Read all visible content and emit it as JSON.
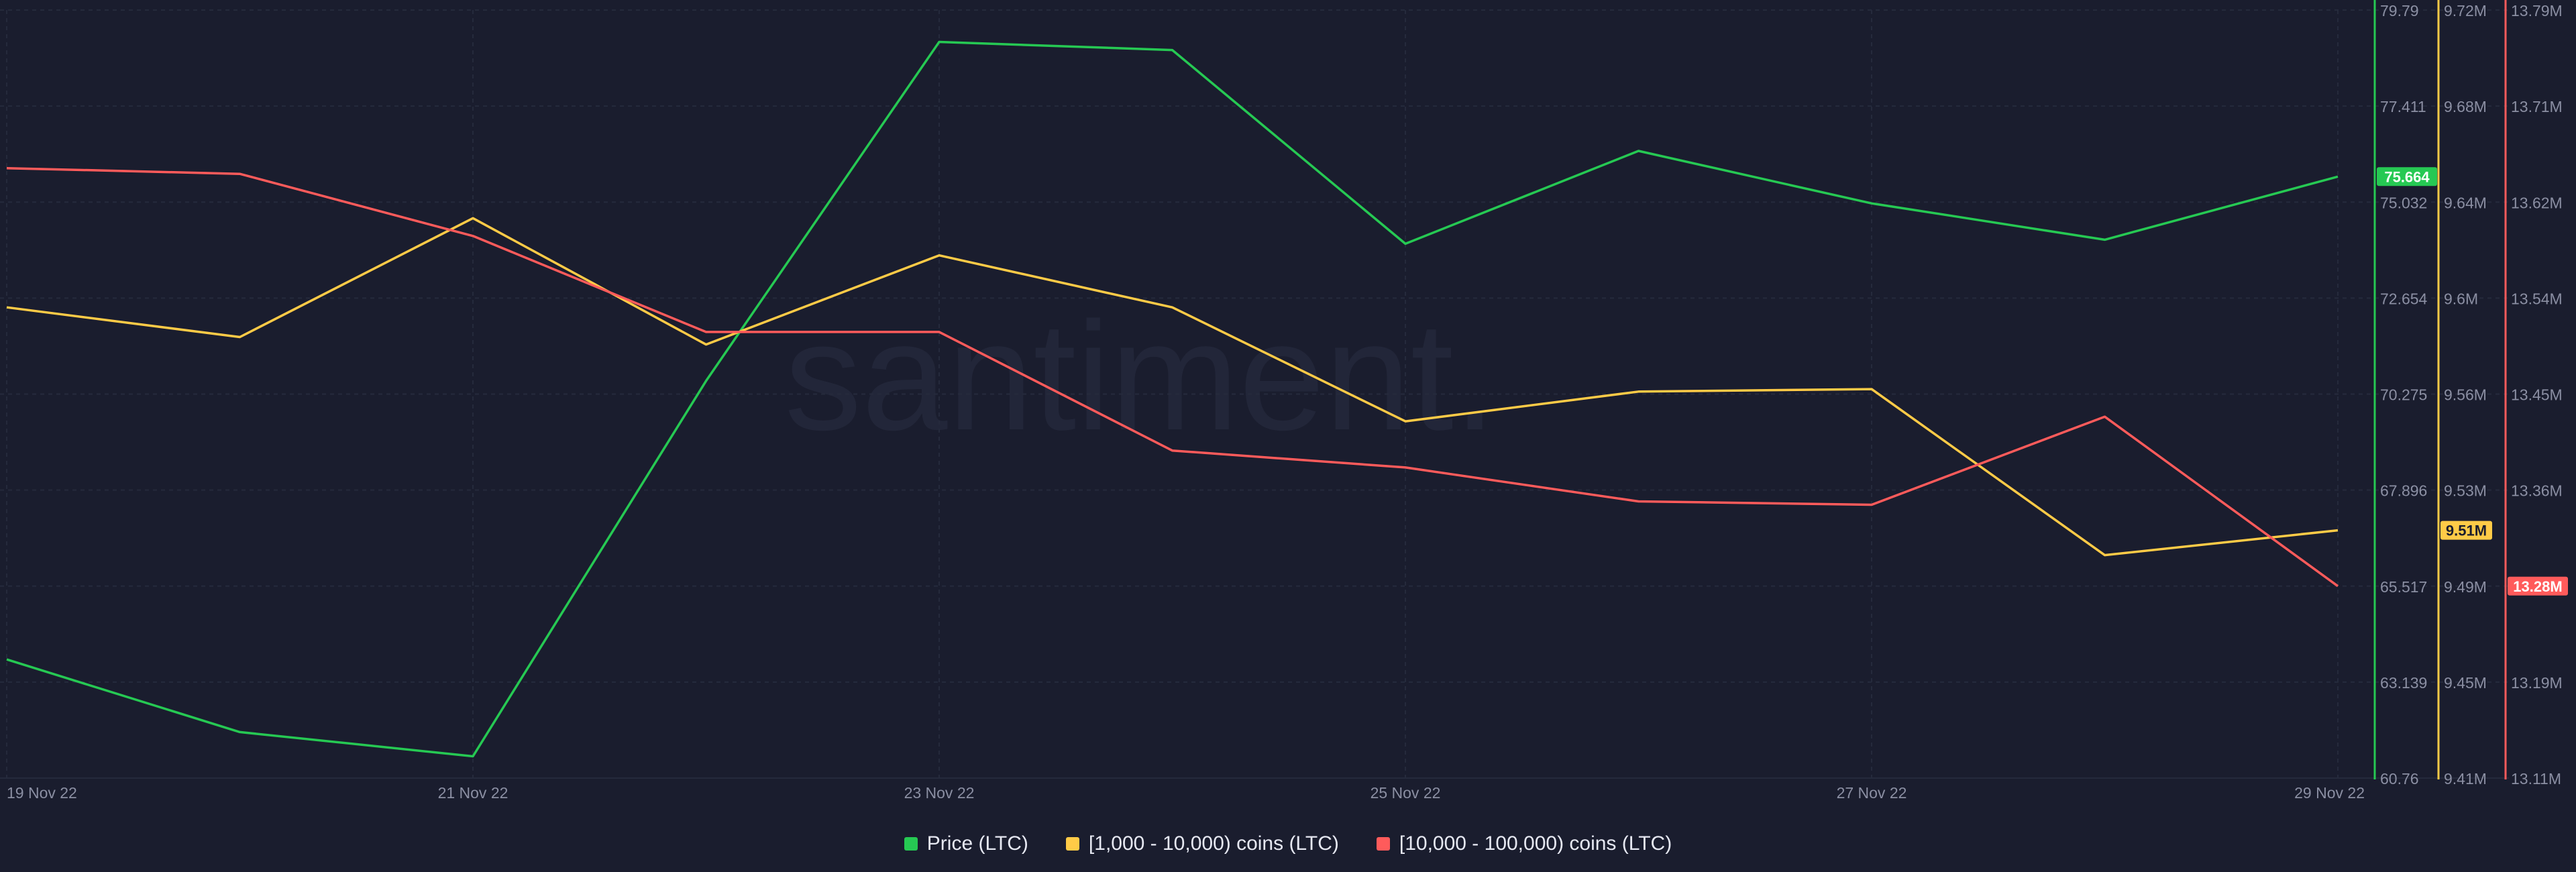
{
  "watermark": "santiment.",
  "chart_data": {
    "type": "line",
    "x": [
      "19 Nov 22",
      "20 Nov 22",
      "21 Nov 22",
      "22 Nov 22",
      "23 Nov 22",
      "24 Nov 22",
      "25 Nov 22",
      "26 Nov 22",
      "27 Nov 22",
      "28 Nov 22",
      "29 Nov 22"
    ],
    "x_tick_labels": [
      "19 Nov 22",
      "21 Nov 22",
      "23 Nov 22",
      "25 Nov 22",
      "27 Nov 22",
      "29 Nov 22"
    ],
    "grid": true,
    "legend_position": "bottom-center",
    "axes": [
      {
        "id": "price",
        "color": "#26c953",
        "ylim": [
          60.76,
          79.79
        ],
        "tick_labels": [
          "79.79",
          "77.411",
          "75.032",
          "72.654",
          "70.275",
          "67.896",
          "65.517",
          "63.139",
          "60.76"
        ],
        "current_label": "75.664"
      },
      {
        "id": "mid",
        "color": "#ffcb47",
        "ylim": [
          9.41,
          9.72
        ],
        "tick_labels": [
          "9.72M",
          "9.68M",
          "9.64M",
          "9.6M",
          "9.56M",
          "9.53M",
          "9.49M",
          "9.45M",
          "9.41M"
        ],
        "current_label": "9.51M"
      },
      {
        "id": "large",
        "color": "#ff5b5b",
        "ylim": [
          13.11,
          13.79
        ],
        "tick_labels": [
          "13.79M",
          "13.71M",
          "13.62M",
          "13.54M",
          "13.45M",
          "13.36M",
          "13.28M",
          "13.19M",
          "13.11M"
        ],
        "current_label": "13.28M"
      }
    ],
    "series": [
      {
        "name": "Price (LTC)",
        "axis": "price",
        "color": "#26c953",
        "values": [
          63.7,
          61.9,
          61.3,
          70.6,
          79.0,
          78.8,
          74.0,
          76.3,
          75.0,
          74.1,
          75.664
        ]
      },
      {
        "name": "[1,000 - 10,000) coins (LTC)",
        "axis": "mid",
        "color": "#ffcb47",
        "values": [
          9.6,
          9.588,
          9.636,
          9.585,
          9.621,
          9.6,
          9.554,
          9.566,
          9.567,
          9.5,
          9.51
        ]
      },
      {
        "name": "[10,000 - 100,000) coins (LTC)",
        "axis": "large",
        "color": "#ff5b5b",
        "values": [
          13.65,
          13.645,
          13.59,
          13.505,
          13.505,
          13.4,
          13.385,
          13.355,
          13.352,
          13.43,
          13.28
        ]
      }
    ]
  }
}
